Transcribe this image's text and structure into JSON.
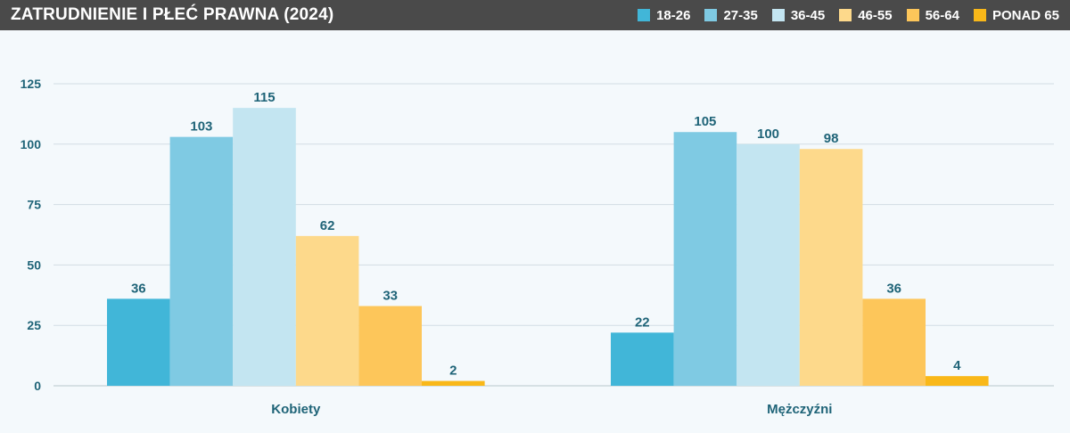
{
  "header": {
    "title": "ZATRUDNIENIE I PŁEĆ PRAWNA (2024)"
  },
  "chart_data": {
    "type": "bar",
    "title": "ZATRUDNIENIE I PŁEĆ PRAWNA (2024)",
    "categories": [
      "Kobiety",
      "Mężczyźni"
    ],
    "series": [
      {
        "name": "18-26",
        "color": "#41b6d8",
        "values": [
          36,
          22
        ]
      },
      {
        "name": "27-35",
        "color": "#7fcae3",
        "values": [
          103,
          105
        ]
      },
      {
        "name": "36-45",
        "color": "#c3e5f1",
        "values": [
          115,
          100
        ]
      },
      {
        "name": "46-55",
        "color": "#fdd98b",
        "values": [
          62,
          98
        ]
      },
      {
        "name": "56-64",
        "color": "#fdc65a",
        "values": [
          33,
          36
        ]
      },
      {
        "name": "PONAD 65",
        "color": "#f9b819",
        "values": [
          2,
          4
        ]
      }
    ],
    "yticks": [
      0,
      25,
      50,
      75,
      100,
      125
    ],
    "ylim": [
      0,
      135
    ],
    "grid": true,
    "legend_position": "top-right"
  }
}
